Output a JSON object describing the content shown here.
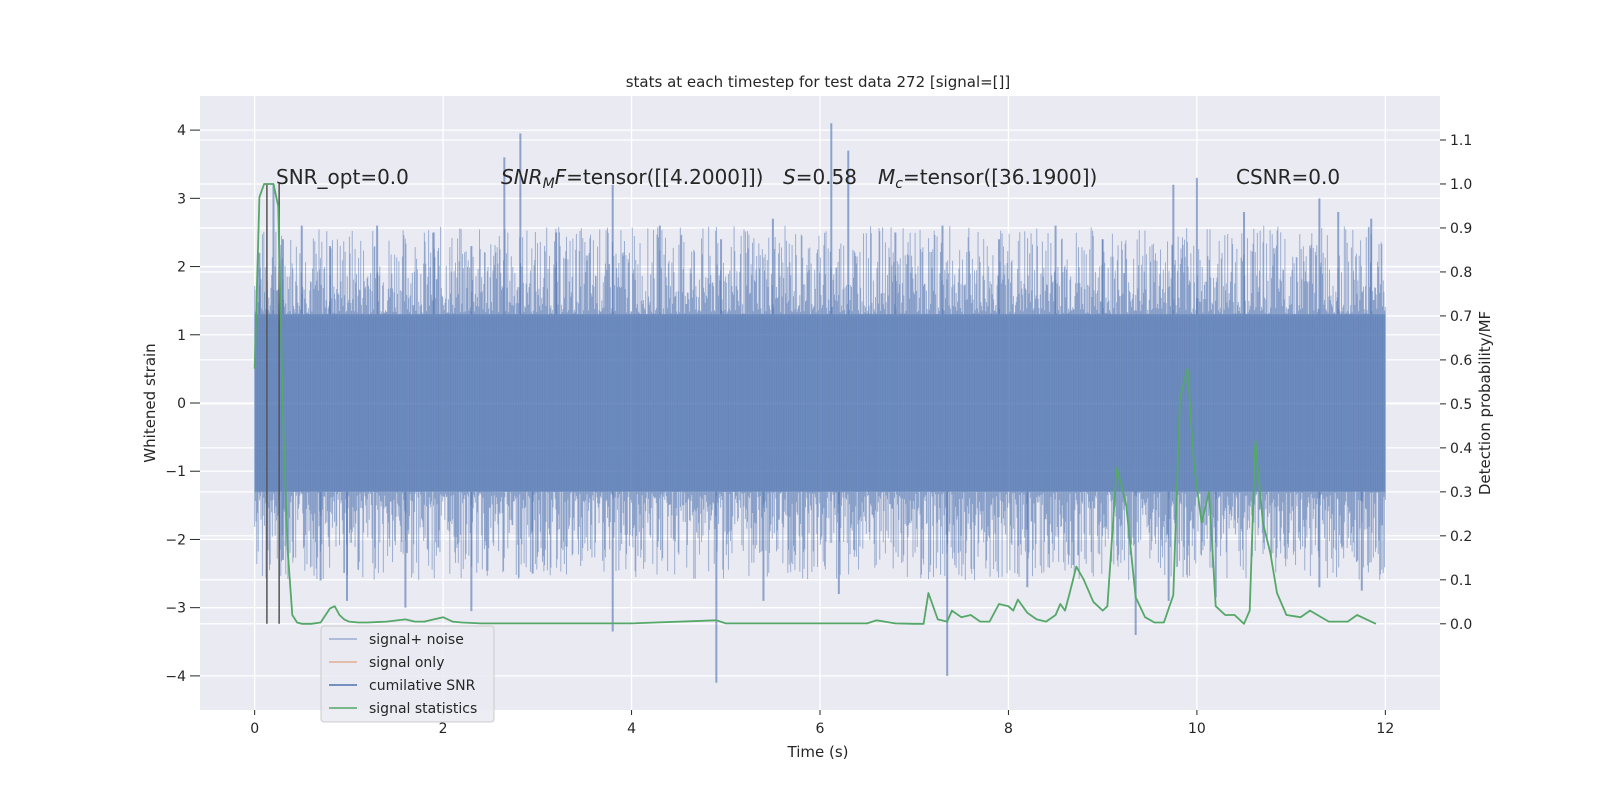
{
  "chart_data": {
    "type": "line",
    "title": "stats at each timestep for test data 272 [signal=[]]",
    "xlabel": "Time (s)",
    "ylabel_left": "Whitened strain",
    "ylabel_right": "Detection probability/MF",
    "xlim": [
      -0.58,
      12.58
    ],
    "ylim_left": [
      -4.5,
      4.5
    ],
    "ylim_right": [
      -0.196,
      1.2
    ],
    "x_ticks": [
      0,
      2,
      4,
      6,
      8,
      10,
      12
    ],
    "x_tick_labels": [
      "0",
      "2",
      "4",
      "6",
      "8",
      "10",
      "12"
    ],
    "y_left_ticks": [
      4,
      3,
      2,
      1,
      0,
      -1,
      -2,
      -3,
      -4
    ],
    "y_left_tick_labels": [
      "4",
      "3",
      "2",
      "1",
      "0",
      "−1",
      "−2",
      "−3",
      "−4"
    ],
    "y_right_ticks": [
      1.1,
      1.0,
      0.9,
      0.8,
      0.7,
      0.6,
      0.5,
      0.4,
      0.3,
      0.2,
      0.1,
      0.0
    ],
    "y_right_tick_labels": [
      "1.1",
      "1.0",
      "0.9",
      "0.8",
      "0.7",
      "0.6",
      "0.5",
      "0.4",
      "0.3",
      "0.2",
      "0.1",
      "0.0"
    ],
    "grid": true,
    "legend_position": "bottom-left",
    "annotations": {
      "snr_opt": "SNR_opt=0.0",
      "snr_mf_symbol": "SNR",
      "snr_mf_sub": "M",
      "snr_mf_tail": "F",
      "snr_mf_value": "=tensor([[4.2000]])",
      "s_symbol": "S",
      "s_value": "=0.58",
      "mc_symbol": "M",
      "mc_sub": "c",
      "mc_value": "=tensor([36.1900])",
      "csnr": "CSNR=0.0"
    },
    "legend": [
      {
        "name": "signal+ noise",
        "color": "#4c72b0"
      },
      {
        "name": "signal only",
        "color": "#dd8452"
      },
      {
        "name": "cumilative SNR",
        "color": "#4c72b0"
      },
      {
        "name": "signal statistics",
        "color": "#55a868"
      }
    ],
    "vertical_markers": [
      0.13,
      0.26
    ],
    "noise_series": {
      "name": "signal+ noise",
      "color": "#4c72b0",
      "alpha": 0.5,
      "x_start": 0,
      "x_end": 12,
      "band": [
        -1.3,
        1.3
      ],
      "spikes": [
        {
          "x": 0.05,
          "y": 2.2
        },
        {
          "x": 0.2,
          "y": 3.2
        },
        {
          "x": 0.3,
          "y": 2.4
        },
        {
          "x": 0.5,
          "y": 2.6
        },
        {
          "x": 0.8,
          "y": 2.3
        },
        {
          "x": 1.3,
          "y": 2.6
        },
        {
          "x": 1.9,
          "y": 2.5
        },
        {
          "x": 2.3,
          "y": 2.3
        },
        {
          "x": 2.65,
          "y": 3.6
        },
        {
          "x": 2.82,
          "y": 3.95
        },
        {
          "x": 3.2,
          "y": 2.5
        },
        {
          "x": 3.8,
          "y": 3.2
        },
        {
          "x": 4.3,
          "y": 2.6
        },
        {
          "x": 4.95,
          "y": 2.4
        },
        {
          "x": 5.5,
          "y": 2.7
        },
        {
          "x": 6.12,
          "y": 4.1
        },
        {
          "x": 6.3,
          "y": 3.7
        },
        {
          "x": 6.8,
          "y": 2.5
        },
        {
          "x": 7.3,
          "y": 2.6
        },
        {
          "x": 7.9,
          "y": 2.4
        },
        {
          "x": 8.5,
          "y": 2.6
        },
        {
          "x": 9.0,
          "y": 2.4
        },
        {
          "x": 9.75,
          "y": 3.2
        },
        {
          "x": 10.0,
          "y": 3.3
        },
        {
          "x": 10.5,
          "y": 2.8
        },
        {
          "x": 11.3,
          "y": 3.0
        },
        {
          "x": 11.5,
          "y": 2.8
        },
        {
          "x": 11.85,
          "y": 2.7
        },
        {
          "x": 0.3,
          "y": -2.3
        },
        {
          "x": 0.7,
          "y": -2.6
        },
        {
          "x": 0.98,
          "y": -2.9
        },
        {
          "x": 1.6,
          "y": -3.0
        },
        {
          "x": 2.3,
          "y": -3.05
        },
        {
          "x": 2.95,
          "y": -2.5
        },
        {
          "x": 3.8,
          "y": -3.35
        },
        {
          "x": 4.9,
          "y": -4.1
        },
        {
          "x": 5.4,
          "y": -2.9
        },
        {
          "x": 6.2,
          "y": -2.8
        },
        {
          "x": 7.35,
          "y": -4.0
        },
        {
          "x": 8.2,
          "y": -2.7
        },
        {
          "x": 9.35,
          "y": -3.4
        },
        {
          "x": 9.7,
          "y": -2.9
        },
        {
          "x": 10.2,
          "y": -2.85
        },
        {
          "x": 11.3,
          "y": -2.7
        },
        {
          "x": 11.75,
          "y": -2.75
        }
      ]
    },
    "statistics_series": {
      "name": "signal statistics",
      "color": "#55a868",
      "x": [
        0.0,
        0.05,
        0.1,
        0.15,
        0.2,
        0.25,
        0.3,
        0.35,
        0.4,
        0.45,
        0.5,
        0.6,
        0.7,
        0.8,
        0.85,
        0.9,
        0.95,
        1.0,
        1.1,
        1.2,
        1.4,
        1.6,
        1.7,
        1.8,
        1.9,
        2.0,
        2.1,
        2.2,
        2.4,
        2.6,
        3.0,
        4.0,
        4.9,
        5.0,
        6.0,
        6.5,
        6.6,
        6.8,
        7.0,
        7.1,
        7.15,
        7.25,
        7.35,
        7.4,
        7.5,
        7.6,
        7.7,
        7.8,
        7.9,
        8.0,
        8.05,
        8.1,
        8.2,
        8.3,
        8.4,
        8.5,
        8.55,
        8.6,
        8.65,
        8.72,
        8.8,
        8.9,
        9.0,
        9.05,
        9.15,
        9.25,
        9.35,
        9.45,
        9.55,
        9.65,
        9.75,
        9.82,
        9.9,
        9.97,
        10.05,
        10.13,
        10.2,
        10.3,
        10.4,
        10.5,
        10.56,
        10.62,
        10.7,
        10.78,
        10.85,
        10.95,
        11.1,
        11.2,
        11.4,
        11.5,
        11.6,
        11.7,
        11.8,
        11.9
      ],
      "y": [
        0.58,
        0.97,
        1.0,
        1.0,
        1.0,
        0.95,
        0.48,
        0.17,
        0.02,
        0.003,
        0.0,
        0.0,
        0.003,
        0.035,
        0.04,
        0.02,
        0.01,
        0.005,
        0.003,
        0.003,
        0.005,
        0.01,
        0.005,
        0.005,
        0.01,
        0.015,
        0.005,
        0.003,
        0.001,
        0.001,
        0.001,
        0.001,
        0.008,
        0.001,
        0.001,
        0.001,
        0.008,
        0.001,
        0.0,
        0.0,
        0.07,
        0.01,
        0.005,
        0.03,
        0.015,
        0.02,
        0.005,
        0.005,
        0.045,
        0.04,
        0.03,
        0.055,
        0.025,
        0.01,
        0.005,
        0.02,
        0.045,
        0.03,
        0.07,
        0.13,
        0.1,
        0.05,
        0.03,
        0.04,
        0.355,
        0.27,
        0.06,
        0.015,
        0.003,
        0.003,
        0.065,
        0.51,
        0.58,
        0.36,
        0.23,
        0.3,
        0.04,
        0.02,
        0.02,
        0.0,
        0.03,
        0.415,
        0.23,
        0.16,
        0.07,
        0.02,
        0.015,
        0.03,
        0.005,
        0.005,
        0.005,
        0.02,
        0.01,
        0.0
      ]
    }
  }
}
